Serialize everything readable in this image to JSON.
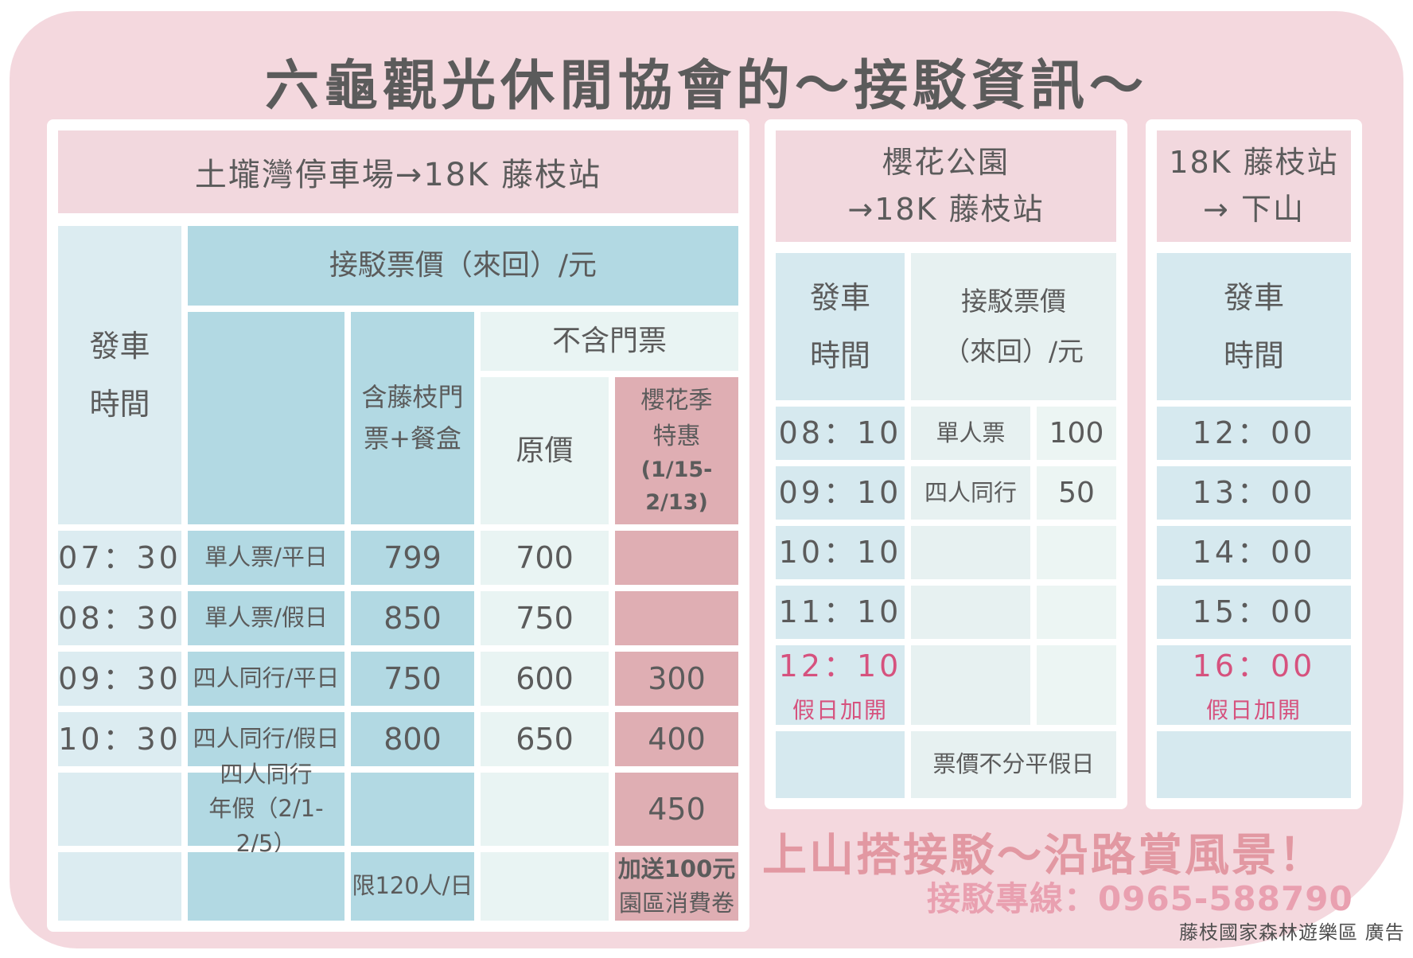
{
  "page_title": "六龜觀光休閒協會的～接駁資訊～",
  "left_table": {
    "title": "土壠灣停車場→18K 藤枝站",
    "headers": {
      "departure_l1": "發車",
      "departure_l2": "時間",
      "fare_group": "接駁票價（來回）/元",
      "with_ticket": "含藤枝門票+餐盒",
      "without_ticket": "不含門票",
      "original_price": "原價",
      "sakura_l1": "櫻花季",
      "sakura_l2": "特惠",
      "sakura_dates_l1": "(1/15-",
      "sakura_dates_l2": "2/13)"
    },
    "rows": [
      {
        "time": "07：30",
        "type": "單人票/平日",
        "with_ticket": "799",
        "original": "700",
        "sakura": ""
      },
      {
        "time": "08：30",
        "type": "單人票/假日",
        "with_ticket": "850",
        "original": "750",
        "sakura": ""
      },
      {
        "time": "09：30",
        "type": "四人同行/平日",
        "with_ticket": "750",
        "original": "600",
        "sakura": "300"
      },
      {
        "time": "10：30",
        "type": "四人同行/假日",
        "with_ticket": "800",
        "original": "650",
        "sakura": "400"
      },
      {
        "time": "",
        "type_l1": "四人同行",
        "type_l2": "年假（2/1-2/5）",
        "with_ticket": "",
        "original": "",
        "sakura": "450"
      },
      {
        "time": "",
        "type": "",
        "with_ticket": "限120人/日",
        "original": "",
        "sakura_l1": "加送100元",
        "sakura_l2": "園區消費卷"
      }
    ]
  },
  "middle_table": {
    "title_l1": "櫻花公園",
    "title_l2": "→18K 藤枝站",
    "headers": {
      "departure_l1": "發車",
      "departure_l2": "時間",
      "fare_l1": "接駁票價",
      "fare_l2": "（來回）/元"
    },
    "rows": [
      {
        "time": "08：10",
        "label": "單人票",
        "price": "100"
      },
      {
        "time": "09：10",
        "label": "四人同行",
        "price": "50"
      },
      {
        "time": "10：10",
        "label": "",
        "price": ""
      },
      {
        "time": "11：10",
        "label": "",
        "price": ""
      },
      {
        "time": "12：10",
        "time_note": "假日加開",
        "label": "",
        "price": ""
      },
      {
        "time": "",
        "note": "票價不分平假日"
      }
    ]
  },
  "right_table": {
    "title_l1": "18K 藤枝站",
    "title_l2": "→ 下山",
    "headers": {
      "departure_l1": "發車",
      "departure_l2": "時間"
    },
    "rows": [
      {
        "time": "12：00"
      },
      {
        "time": "13：00"
      },
      {
        "time": "14：00"
      },
      {
        "time": "15：00"
      },
      {
        "time": "16：00",
        "time_note": "假日加開"
      },
      {
        "time": ""
      }
    ]
  },
  "footer": {
    "slogan": "上山搭接駁～沿路賞風景！",
    "hotline": "接駁專線：0965-588790",
    "credit": "藤枝國家森林遊樂區 廣告"
  },
  "colors": {
    "card_pink": "#f4d8de",
    "panel_bar_pink": "#f2d8de",
    "light_blue": "#dcecf1",
    "medium_blue": "#b2d9e3",
    "pale_aqua": "#e9f4f3",
    "rose": "#dfaeb3",
    "accent_pink_text": "#d6527e",
    "slogan_pink": "#e298a2",
    "hotline_pink": "#e9a0b0",
    "ink": "#5b5b5b"
  }
}
